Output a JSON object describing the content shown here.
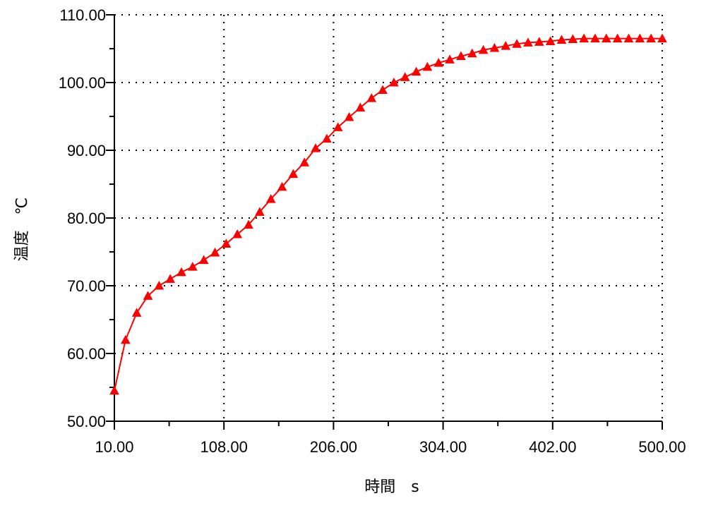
{
  "chart_data": {
    "type": "line",
    "xlabel": "時間　s",
    "ylabel": "温度　℃",
    "xlim": [
      10,
      500
    ],
    "ylim": [
      50,
      110
    ],
    "x_ticks": [
      "10.00",
      "108.00",
      "206.00",
      "304.00",
      "402.00",
      "500.00"
    ],
    "y_ticks": [
      "50.00",
      "60.00",
      "70.00",
      "80.00",
      "90.00",
      "100.00",
      "110.00"
    ],
    "grid": "dotted",
    "marker": "triangle",
    "series": [
      {
        "color": "#ff0000",
        "x": [
          10,
          20,
          30,
          40,
          50,
          60,
          70,
          80,
          90,
          100,
          110,
          120,
          130,
          140,
          150,
          160,
          170,
          180,
          190,
          200,
          210,
          220,
          230,
          240,
          250,
          260,
          270,
          280,
          290,
          300,
          310,
          320,
          330,
          340,
          350,
          360,
          370,
          380,
          390,
          400,
          410,
          420,
          430,
          440,
          450,
          460,
          470,
          480,
          490,
          500
        ],
        "values": [
          54.5,
          62.0,
          66.0,
          68.5,
          70.0,
          71.0,
          72.0,
          72.8,
          73.8,
          74.9,
          76.2,
          77.6,
          79.0,
          80.9,
          82.8,
          84.6,
          86.5,
          88.2,
          90.3,
          91.7,
          93.4,
          94.9,
          96.3,
          97.7,
          98.9,
          100.0,
          100.8,
          101.6,
          102.3,
          102.9,
          103.4,
          103.9,
          104.3,
          104.8,
          105.1,
          105.4,
          105.7,
          105.9,
          106.0,
          106.1,
          106.3,
          106.4,
          106.5,
          106.5,
          106.5,
          106.5,
          106.5,
          106.5,
          106.5,
          106.5
        ]
      }
    ]
  }
}
